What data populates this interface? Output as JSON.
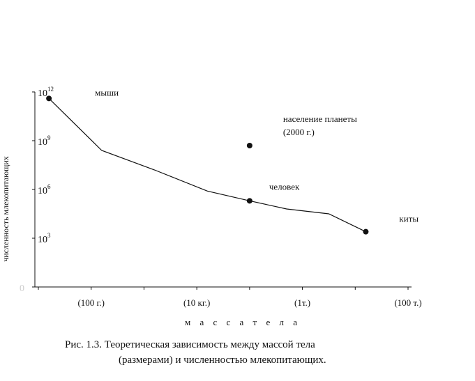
{
  "chart_data": {
    "type": "line",
    "ylabel": "численность млекопитающих",
    "xlabel": "м а с с а    т е л а",
    "y_scale": "log10",
    "ylim": [
      0,
      12
    ],
    "yticks": [
      {
        "exp": 0,
        "label": "0",
        "faint": true
      },
      {
        "exp": 3,
        "label": "10",
        "sup": "3"
      },
      {
        "exp": 6,
        "label": "10",
        "sup": "6"
      },
      {
        "exp": 9,
        "label": "10",
        "sup": "9"
      },
      {
        "exp": 12,
        "label": "10",
        "sup": "12"
      }
    ],
    "xlim": [
      0,
      7
    ],
    "xticks": [
      {
        "pos": 1.0,
        "label": "(100 г.)"
      },
      {
        "pos": 3.0,
        "label": "(10 кг.)"
      },
      {
        "pos": 5.0,
        "label": "(1т.)"
      },
      {
        "pos": 7.0,
        "label": "(100 т.)"
      }
    ],
    "series": [
      {
        "x": [
          0.2,
          1.2,
          2.2,
          3.2,
          4.0,
          4.7,
          5.5,
          6.2
        ],
        "y": [
          11.6,
          8.4,
          7.2,
          5.9,
          5.3,
          4.8,
          4.5,
          3.4
        ]
      }
    ],
    "points": [
      {
        "label": "мыши",
        "x": 0.2,
        "y": 11.6
      },
      {
        "label": "человек",
        "x": 4.0,
        "y": 5.3
      },
      {
        "label": "киты",
        "x": 6.2,
        "y": 3.4
      },
      {
        "label": "население планеты",
        "label2": "(2000 г.)",
        "x": 4.0,
        "y": 8.7
      }
    ]
  },
  "caption": {
    "line1": "Рис. 1.3. Теоретическая зависимость между массой тела",
    "line2": "(размерами) и  численностью млекопитающих."
  }
}
